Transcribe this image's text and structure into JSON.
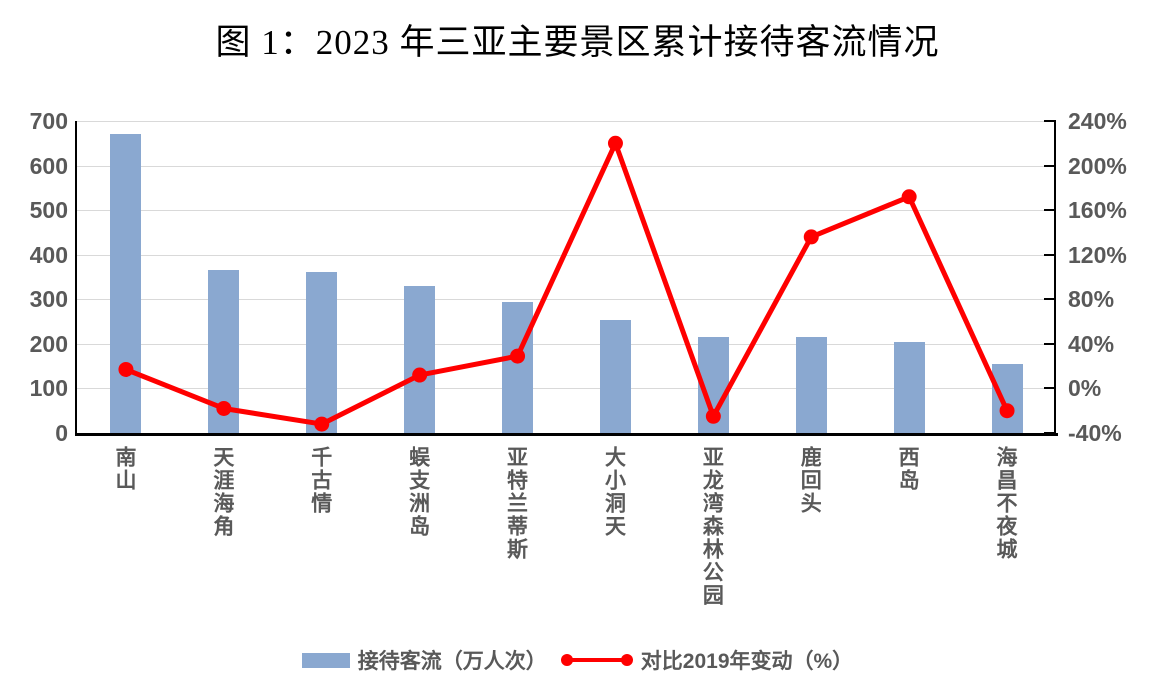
{
  "title": "图 1：2023 年三亚主要景区累计接待客流情况",
  "colors": {
    "bar": "#8aa8d0",
    "line": "#ff0000",
    "axis": "#000000",
    "gridline": "#d9d9d9",
    "label": "#595959"
  },
  "chart_data": {
    "type": "combo",
    "categories": [
      "南山",
      "天涯海角",
      "千古情",
      "蜈支洲岛",
      "亚特兰蒂斯",
      "大小洞天",
      "亚龙湾森林公园",
      "鹿回头",
      "西岛",
      "海昌不夜城"
    ],
    "series": [
      {
        "name": "接待客流（万人次）",
        "type": "bar",
        "axis": "left",
        "color": "#8aa8d0",
        "values": [
          670,
          365,
          362,
          330,
          295,
          253,
          215,
          215,
          205,
          155
        ]
      },
      {
        "name": "对比2019年变动（%）",
        "type": "line",
        "axis": "right",
        "color": "#ff0000",
        "values": [
          17,
          -18,
          -32,
          12,
          29,
          220,
          -25,
          136,
          172,
          -20
        ]
      }
    ],
    "left_axis": {
      "min": 0,
      "max": 700,
      "step": 100,
      "tick_labels_top_down": [
        "700",
        "600",
        "500",
        "400",
        "300",
        "200",
        "100",
        "0"
      ]
    },
    "right_axis": {
      "min": -40,
      "max": 240,
      "step": 40,
      "tick_labels_top_down": [
        "240%",
        "200%",
        "160%",
        "120%",
        "80%",
        "40%",
        "0%",
        "-40%"
      ]
    },
    "grid": true,
    "legend_position": "bottom",
    "title": "图 1：2023 年三亚主要景区累计接待客流情况"
  }
}
